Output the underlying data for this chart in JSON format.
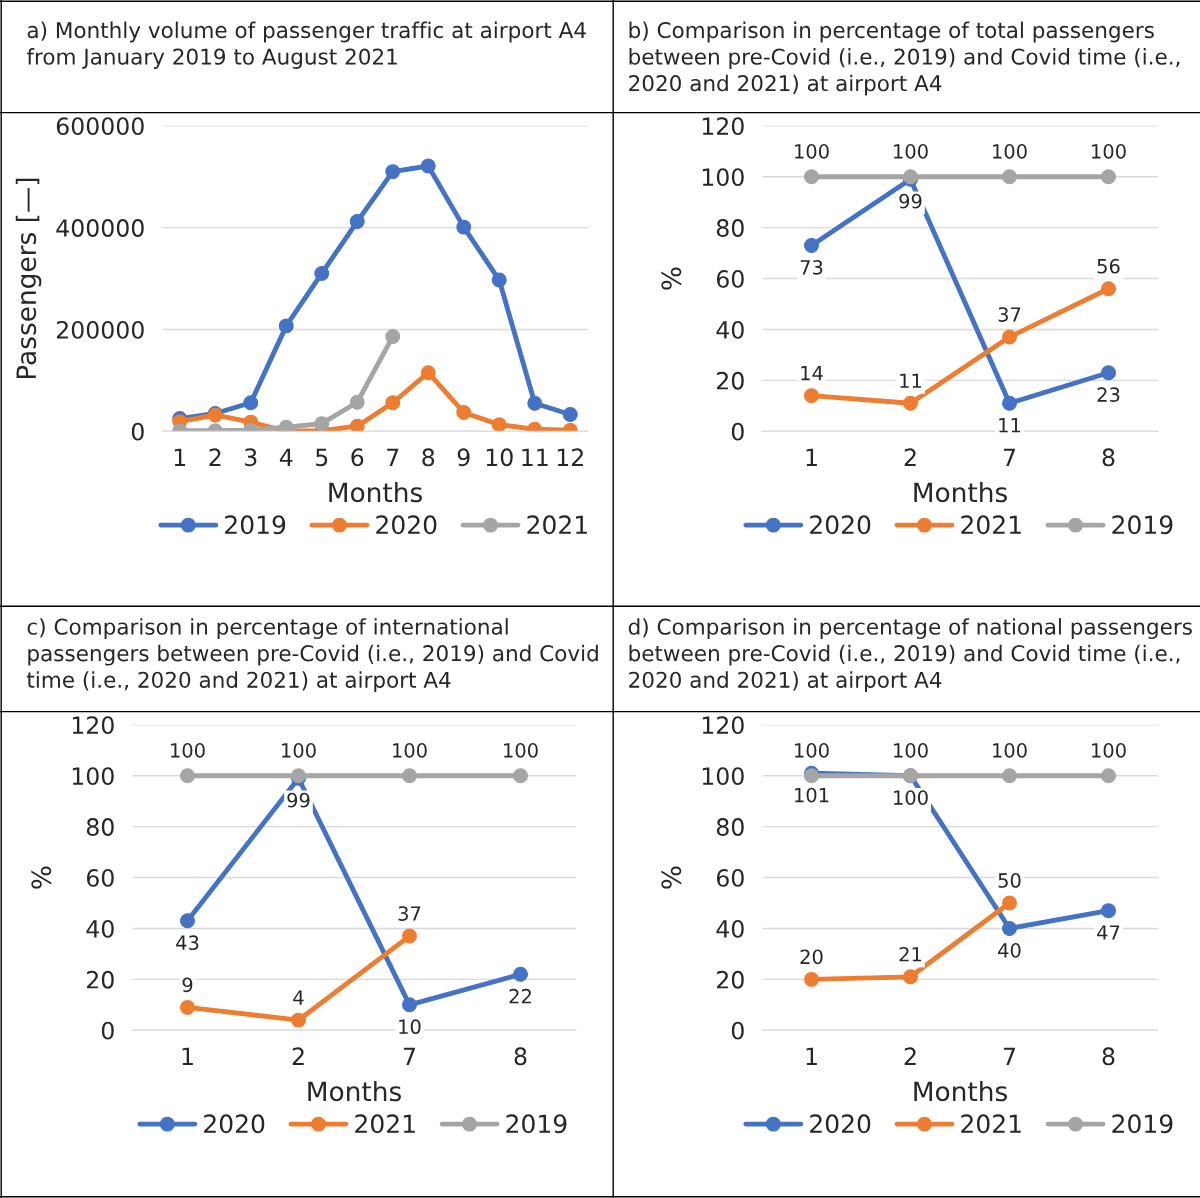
{
  "chart_data": [
    {
      "type": "line",
      "title": "a) Monthly volume of passenger traffic at airport A4\nfrom January 2019 to August 2021",
      "xlabel": "Months",
      "ylabel": "Passengers [—]",
      "categories": [
        "1",
        "2",
        "3",
        "4",
        "5",
        "6",
        "7",
        "8",
        "9",
        "10",
        "11",
        "12"
      ],
      "ylim": [
        0,
        600000
      ],
      "yticks": [
        0,
        200000,
        400000,
        600000
      ],
      "grid": "y",
      "legend": "bottom",
      "marker": "circle",
      "series": [
        {
          "name": "2019",
          "color": "#4472c4",
          "values": [
            25000,
            35000,
            56000,
            207000,
            310000,
            412000,
            510000,
            521000,
            401000,
            297000,
            55000,
            33000
          ]
        },
        {
          "name": "2020",
          "color": "#ed7d31",
          "values": [
            19000,
            32000,
            18000,
            0,
            1000,
            10000,
            56000,
            115000,
            37000,
            13000,
            4000,
            2000
          ]
        },
        {
          "name": "2021",
          "color": "#a5a5a5",
          "values": [
            1000,
            1000,
            2000,
            8000,
            15000,
            57000,
            186000,
            null,
            null,
            null,
            null,
            null
          ]
        }
      ]
    },
    {
      "type": "line",
      "title": "b) Comparison in percentage of total passengers\nbetween pre-Covid (i.e., 2019) and Covid time (i.e.,\n2020 and 2021) at airport A4",
      "xlabel": "Months",
      "ylabel": "%",
      "categories": [
        "1",
        "2",
        "7",
        "8"
      ],
      "ylim": [
        0,
        120
      ],
      "yticks": [
        0,
        20,
        40,
        60,
        80,
        100,
        120
      ],
      "grid": "y",
      "legend": "bottom",
      "marker": "circle",
      "data_labels": true,
      "series": [
        {
          "name": "2020",
          "color": "#4472c4",
          "values": [
            73,
            99,
            11,
            23
          ]
        },
        {
          "name": "2021",
          "color": "#ed7d31",
          "values": [
            14,
            11,
            37,
            56
          ]
        },
        {
          "name": "2019",
          "color": "#a5a5a5",
          "values": [
            100,
            100,
            100,
            100
          ]
        }
      ]
    },
    {
      "type": "line",
      "title": "c) Comparison in percentage of international\npassengers between pre-Covid (i.e., 2019) and Covid\ntime (i.e., 2020 and 2021) at airport A4",
      "xlabel": "Months",
      "ylabel": "%",
      "categories": [
        "1",
        "2",
        "7",
        "8"
      ],
      "ylim": [
        0,
        120
      ],
      "yticks": [
        0,
        20,
        40,
        60,
        80,
        100,
        120
      ],
      "grid": "y",
      "legend": "bottom",
      "marker": "circle",
      "data_labels": true,
      "series": [
        {
          "name": "2020",
          "color": "#4472c4",
          "values": [
            43,
            99,
            10,
            22
          ]
        },
        {
          "name": "2021",
          "color": "#ed7d31",
          "values": [
            9,
            4,
            37,
            null
          ]
        },
        {
          "name": "2019",
          "color": "#a5a5a5",
          "values": [
            100,
            100,
            100,
            100
          ]
        }
      ]
    },
    {
      "type": "line",
      "title": "d) Comparison in percentage of national passengers\nbetween pre-Covid (i.e., 2019) and Covid time (i.e.,\n2020 and 2021) at airport A4",
      "xlabel": "Months",
      "ylabel": "%",
      "categories": [
        "1",
        "2",
        "7",
        "8"
      ],
      "ylim": [
        0,
        120
      ],
      "yticks": [
        0,
        20,
        40,
        60,
        80,
        100,
        120
      ],
      "grid": "y",
      "legend": "bottom",
      "marker": "circle",
      "data_labels": true,
      "series": [
        {
          "name": "2020",
          "color": "#4472c4",
          "values": [
            101,
            100,
            40,
            47
          ]
        },
        {
          "name": "2021",
          "color": "#ed7d31",
          "values": [
            20,
            21,
            50,
            null
          ]
        },
        {
          "name": "2019",
          "color": "#a5a5a5",
          "values": [
            100,
            100,
            100,
            100
          ]
        }
      ]
    }
  ]
}
